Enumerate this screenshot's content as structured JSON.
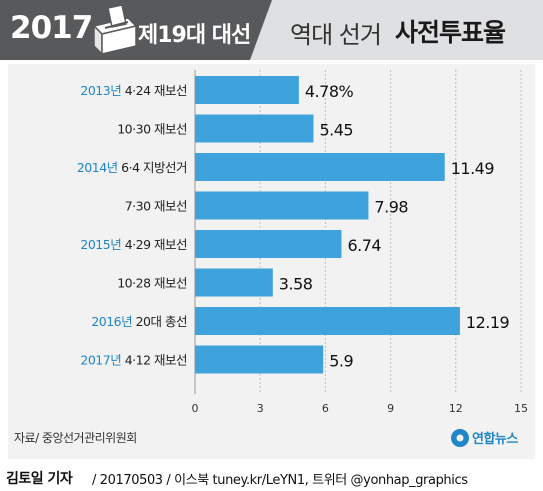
{
  "header": {
    "year": "2017",
    "subtitle": "제19대 대선",
    "title_light": "역대 선거",
    "title_bold": "사전투표율"
  },
  "source_note": "자료/ 중앙선거관리위원회",
  "logo_text": "연합뉴스",
  "footer": {
    "author": "김토일 기자",
    "rest": "/ 20170503 / 이스북 tuney.kr/LeYN1, 트위터 @yonhap_graphics"
  },
  "colors": {
    "bar": "#3ea3dc",
    "year_label": "#1f86c7",
    "header_dark": "#58595b",
    "header_bg": "#dfe0e2",
    "panel_bg": "#f2f2f2"
  },
  "chart_data": {
    "type": "bar",
    "orientation": "horizontal",
    "categories": [
      {
        "year": "2013년",
        "label": "4·24 재보선"
      },
      {
        "year": "",
        "label": "10·30 재보선"
      },
      {
        "year": "2014년",
        "label": "6·4 지방선거"
      },
      {
        "year": "",
        "label": "7·30 재보선"
      },
      {
        "year": "2015년",
        "label": "4·29 재보선"
      },
      {
        "year": "",
        "label": "10·28 재보선"
      },
      {
        "year": "2016년",
        "label": "20대 총선"
      },
      {
        "year": "2017년",
        "label": "4·12 재보선"
      }
    ],
    "values": [
      4.78,
      5.45,
      11.49,
      7.98,
      6.74,
      3.58,
      12.19,
      5.9
    ],
    "value_labels": [
      "4.78%",
      "5.45",
      "11.49",
      "7.98",
      "6.74",
      "3.58",
      "12.19",
      "5.9"
    ],
    "xlim": [
      0,
      15
    ],
    "xticks": [
      0,
      3,
      6,
      9,
      12,
      15
    ],
    "grid": true
  }
}
